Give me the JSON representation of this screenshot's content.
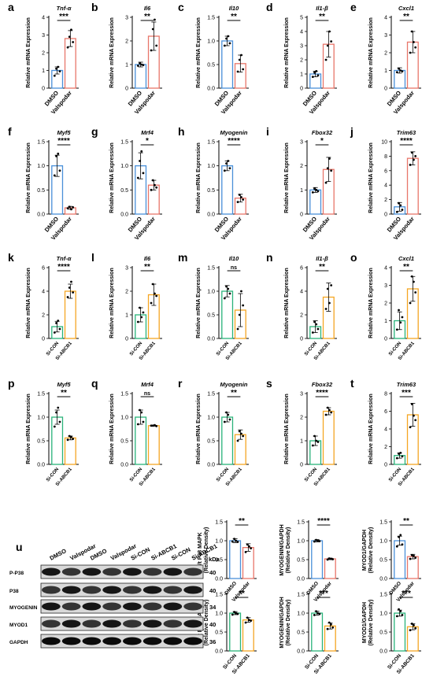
{
  "colors": {
    "blue": "#4a90d9",
    "red": "#e8766a",
    "green": "#2ab37a",
    "orange": "#f5a623",
    "axis": "#000000"
  },
  "ylabel_main": "Relative mRNA Expression",
  "chart_data": [
    {
      "type": "bar",
      "letter": "a",
      "gene": "Tnf-α",
      "categories": [
        "DMSO",
        "Valspodar"
      ],
      "values": [
        1.0,
        2.8
      ],
      "errors": [
        0.2,
        0.45
      ],
      "points": [
        [
          0.7,
          1.1,
          1.2,
          0.95
        ],
        [
          2.3,
          2.9,
          3.3,
          2.6
        ]
      ],
      "ylim": [
        0,
        4
      ],
      "yticks": [
        0,
        1,
        2,
        3,
        4
      ],
      "sig": "***",
      "series_colors": [
        "blue",
        "red"
      ],
      "ylabel": "Relative mRNA Expression"
    },
    {
      "type": "bar",
      "letter": "b",
      "gene": "Il6",
      "categories": [
        "DMSO",
        "Valspodar"
      ],
      "values": [
        1.0,
        2.2
      ],
      "errors": [
        0.1,
        0.6
      ],
      "points": [
        [
          0.95,
          1.05,
          1.0,
          0.98
        ],
        [
          1.6,
          2.5,
          2.9,
          1.8
        ]
      ],
      "ylim": [
        0,
        3
      ],
      "yticks": [
        0,
        1,
        2,
        3
      ],
      "sig": "**",
      "series_colors": [
        "blue",
        "red"
      ],
      "ylabel": "Relative mRNA Expression"
    },
    {
      "type": "bar",
      "letter": "c",
      "gene": "Il10",
      "categories": [
        "DMSO",
        "Valspodar"
      ],
      "values": [
        1.0,
        0.52
      ],
      "errors": [
        0.1,
        0.18
      ],
      "points": [
        [
          0.9,
          1.05,
          1.1,
          0.95
        ],
        [
          0.35,
          0.6,
          0.7,
          0.4
        ]
      ],
      "ylim": [
        0,
        1.5
      ],
      "yticks": [
        0.0,
        0.5,
        1.0,
        1.5
      ],
      "sig": "**",
      "series_colors": [
        "blue",
        "red"
      ],
      "ylabel": "Relative mRNA Expression"
    },
    {
      "type": "bar",
      "letter": "d",
      "gene": "Il1-β",
      "categories": [
        "DMSO",
        "Valspodar"
      ],
      "values": [
        1.0,
        3.1
      ],
      "errors": [
        0.2,
        0.9
      ],
      "points": [
        [
          0.8,
          1.1,
          1.2,
          0.9
        ],
        [
          2.0,
          3.0,
          4.0,
          3.3
        ]
      ],
      "ylim": [
        0,
        5
      ],
      "yticks": [
        0,
        1,
        2,
        3,
        4,
        5
      ],
      "sig": "**",
      "series_colors": [
        "blue",
        "red"
      ],
      "ylabel": "Relative mRNA Expression"
    },
    {
      "type": "bar",
      "letter": "e",
      "gene": "Cxcl1",
      "categories": [
        "DMSO",
        "Valspodar"
      ],
      "values": [
        1.0,
        2.6
      ],
      "errors": [
        0.15,
        0.6
      ],
      "points": [
        [
          0.9,
          1.1,
          1.0,
          0.95
        ],
        [
          2.0,
          3.2,
          2.6,
          2.3
        ]
      ],
      "ylim": [
        0,
        4
      ],
      "yticks": [
        0,
        1,
        2,
        3,
        4
      ],
      "sig": "**",
      "series_colors": [
        "blue",
        "red"
      ],
      "ylabel": "Relative mRNA Expression"
    },
    {
      "type": "bar",
      "letter": "f",
      "gene": "Myf5",
      "categories": [
        "DMSO",
        "Valspodar"
      ],
      "values": [
        1.0,
        0.13
      ],
      "errors": [
        0.22,
        0.03
      ],
      "points": [
        [
          0.8,
          1.2,
          1.25,
          0.9
        ],
        [
          0.12,
          0.15,
          0.1,
          0.14
        ]
      ],
      "ylim": [
        0,
        1.5
      ],
      "yticks": [
        0.0,
        0.5,
        1.0,
        1.5
      ],
      "sig": "****",
      "series_colors": [
        "blue",
        "red"
      ],
      "ylabel": "Relative mRNA Expression"
    },
    {
      "type": "bar",
      "letter": "g",
      "gene": "Mrf4",
      "categories": [
        "DMSO",
        "Valspodar"
      ],
      "values": [
        1.0,
        0.6
      ],
      "errors": [
        0.27,
        0.1
      ],
      "points": [
        [
          0.75,
          1.1,
          1.3,
          0.85
        ],
        [
          0.5,
          0.7,
          0.6,
          0.55
        ]
      ],
      "ylim": [
        0,
        1.5
      ],
      "yticks": [
        0.0,
        0.5,
        1.0,
        1.5
      ],
      "sig": "*",
      "series_colors": [
        "blue",
        "red"
      ],
      "ylabel": "Relative mRNA Expression"
    },
    {
      "type": "bar",
      "letter": "h",
      "gene": "Myogenin",
      "categories": [
        "DMSO",
        "Valspodar"
      ],
      "values": [
        1.0,
        0.33
      ],
      "errors": [
        0.1,
        0.08
      ],
      "points": [
        [
          0.9,
          1.05,
          1.1,
          0.95
        ],
        [
          0.25,
          0.4,
          0.35,
          0.3
        ]
      ],
      "ylim": [
        0,
        1.5
      ],
      "yticks": [
        0.0,
        0.5,
        1.0,
        1.5
      ],
      "sig": "****",
      "series_colors": [
        "blue",
        "red"
      ],
      "ylabel": "Relative mRNA Expression"
    },
    {
      "type": "bar",
      "letter": "i",
      "gene": "Fbox32",
      "categories": [
        "DMSO",
        "Valspodar"
      ],
      "values": [
        1.0,
        1.85
      ],
      "errors": [
        0.1,
        0.5
      ],
      "points": [
        [
          0.9,
          1.05,
          1.0,
          0.95
        ],
        [
          1.3,
          1.9,
          2.3,
          1.8
        ]
      ],
      "ylim": [
        0,
        3
      ],
      "yticks": [
        0,
        1,
        2,
        3
      ],
      "sig": "*",
      "series_colors": [
        "blue",
        "red"
      ],
      "ylabel": "Relative mRNA Expression"
    },
    {
      "type": "bar",
      "letter": "j",
      "gene": "Trim63",
      "categories": [
        "DMSO",
        "Valspodar"
      ],
      "values": [
        1.0,
        7.7
      ],
      "errors": [
        0.6,
        0.9
      ],
      "points": [
        [
          0.3,
          1.5,
          1.2,
          0.6
        ],
        [
          6.8,
          8.5,
          7.5,
          8.0
        ]
      ],
      "ylim": [
        0,
        10
      ],
      "yticks": [
        0,
        2,
        4,
        6,
        8,
        10
      ],
      "sig": "****",
      "series_colors": [
        "blue",
        "red"
      ],
      "ylabel": "Relative mRNA Expression"
    },
    {
      "type": "bar",
      "letter": "k",
      "gene": "Tnf-α",
      "categories": [
        "Si-CON",
        "Si-ABCB1"
      ],
      "values": [
        1.0,
        4.0
      ],
      "errors": [
        0.45,
        0.6
      ],
      "points": [
        [
          0.5,
          1.3,
          1.5,
          0.8
        ],
        [
          3.5,
          4.3,
          4.8,
          3.9
        ]
      ],
      "ylim": [
        0,
        6
      ],
      "yticks": [
        0,
        2,
        4,
        6
      ],
      "sig": "****",
      "series_colors": [
        "green",
        "orange"
      ],
      "ylabel": "Relative mRNA Expression"
    },
    {
      "type": "bar",
      "letter": "l",
      "gene": "Il6",
      "categories": [
        "Si-CON",
        "Si-ABCB1"
      ],
      "values": [
        1.0,
        1.85
      ],
      "errors": [
        0.3,
        0.45
      ],
      "points": [
        [
          0.7,
          1.3,
          0.9,
          1.1
        ],
        [
          1.5,
          2.3,
          1.9,
          1.8
        ]
      ],
      "ylim": [
        0,
        3
      ],
      "yticks": [
        0,
        1,
        2,
        3
      ],
      "sig": "**",
      "series_colors": [
        "green",
        "orange"
      ],
      "ylabel": "Relative mRNA Expression"
    },
    {
      "type": "bar",
      "letter": "m",
      "gene": "Il10",
      "categories": [
        "Si-CON",
        "Si-ABCB1"
      ],
      "values": [
        1.0,
        0.6
      ],
      "errors": [
        0.12,
        0.35
      ],
      "points": [
        [
          0.85,
          1.1,
          1.05,
          0.95
        ],
        [
          0.2,
          0.5,
          1.0,
          0.7
        ]
      ],
      "ylim": [
        0,
        1.5
      ],
      "yticks": [
        0.0,
        0.5,
        1.0,
        1.5
      ],
      "sig": "ns",
      "series_colors": [
        "green",
        "orange"
      ],
      "ylabel": "Relative mRNA Expression"
    },
    {
      "type": "bar",
      "letter": "n",
      "gene": "Il1-β",
      "categories": [
        "Si-CON",
        "Si-ABCB1"
      ],
      "values": [
        1.0,
        3.5
      ],
      "errors": [
        0.5,
        1.2
      ],
      "points": [
        [
          0.5,
          1.4,
          1.2,
          0.8
        ],
        [
          2.5,
          4.2,
          3.0,
          4.5
        ]
      ],
      "ylim": [
        0,
        6
      ],
      "yticks": [
        0,
        2,
        4,
        6
      ],
      "sig": "**",
      "series_colors": [
        "green",
        "orange"
      ],
      "ylabel": "Relative mRNA Expression"
    },
    {
      "type": "bar",
      "letter": "o",
      "gene": "Cxcl1",
      "categories": [
        "Si-CON",
        "Si-ABCB1"
      ],
      "values": [
        1.0,
        2.8
      ],
      "errors": [
        0.5,
        0.7
      ],
      "points": [
        [
          0.5,
          1.6,
          0.9,
          1.2
        ],
        [
          2.0,
          3.5,
          3.2,
          2.6
        ]
      ],
      "ylim": [
        0,
        4
      ],
      "yticks": [
        0,
        1,
        2,
        3,
        4
      ],
      "sig": "**",
      "series_colors": [
        "green",
        "orange"
      ],
      "ylabel": "Relative mRNA Expression"
    },
    {
      "type": "bar",
      "letter": "p",
      "gene": "Myf5",
      "categories": [
        "Si-CON",
        "Si-ABCB1"
      ],
      "values": [
        1.0,
        0.56
      ],
      "errors": [
        0.15,
        0.04
      ],
      "points": [
        [
          0.8,
          1.1,
          1.2,
          0.9
        ],
        [
          0.52,
          0.6,
          0.58,
          0.54
        ]
      ],
      "ylim": [
        0,
        1.5
      ],
      "yticks": [
        0.0,
        0.5,
        1.0,
        1.5
      ],
      "sig": "**",
      "series_colors": [
        "green",
        "orange"
      ],
      "ylabel": "Relative mRNA Expression"
    },
    {
      "type": "bar",
      "letter": "q",
      "gene": "Mrf4",
      "categories": [
        "Si-CON",
        "Si-ABCB1"
      ],
      "values": [
        1.0,
        0.82
      ],
      "errors": [
        0.15,
        0.01
      ],
      "points": [
        [
          0.85,
          1.15,
          1.1,
          0.9
        ],
        [
          0.82,
          0.82,
          0.83,
          0.81
        ]
      ],
      "ylim": [
        0,
        1.5
      ],
      "yticks": [
        0.0,
        0.5,
        1.0,
        1.5
      ],
      "sig": "ns",
      "series_colors": [
        "green",
        "orange"
      ],
      "ylabel": "Relative mRNA Expression"
    },
    {
      "type": "bar",
      "letter": "r",
      "gene": "Myogenin",
      "categories": [
        "Si-CON",
        "Si-ABCB1"
      ],
      "values": [
        1.0,
        0.63
      ],
      "errors": [
        0.1,
        0.1
      ],
      "points": [
        [
          0.9,
          1.1,
          1.05,
          0.95
        ],
        [
          0.5,
          0.7,
          0.65,
          0.6
        ]
      ],
      "ylim": [
        0,
        1.5
      ],
      "yticks": [
        0.0,
        0.5,
        1.0,
        1.5
      ],
      "sig": "**",
      "series_colors": [
        "green",
        "orange"
      ],
      "ylabel": "Relative mRNA Expression"
    },
    {
      "type": "bar",
      "letter": "s",
      "gene": "Fbox32",
      "categories": [
        "Si-CON",
        "Si-ABCB1"
      ],
      "values": [
        1.0,
        2.25
      ],
      "errors": [
        0.2,
        0.15
      ],
      "points": [
        [
          0.8,
          1.2,
          1.0,
          0.95
        ],
        [
          2.1,
          2.4,
          2.3,
          2.2
        ]
      ],
      "ylim": [
        0,
        3
      ],
      "yticks": [
        0,
        1,
        2,
        3
      ],
      "sig": "****",
      "series_colors": [
        "green",
        "orange"
      ],
      "ylabel": "Relative mRNA Expression"
    },
    {
      "type": "bar",
      "letter": "t",
      "gene": "Trim63",
      "categories": [
        "Si-CON",
        "Si-ABCB1"
      ],
      "values": [
        1.0,
        5.6
      ],
      "errors": [
        0.3,
        1.3
      ],
      "points": [
        [
          0.7,
          1.2,
          1.3,
          0.9
        ],
        [
          4.2,
          6.8,
          5.5,
          5.0
        ]
      ],
      "ylim": [
        0,
        8
      ],
      "yticks": [
        0,
        2,
        4,
        6,
        8
      ],
      "sig": "***",
      "series_colors": [
        "green",
        "orange"
      ],
      "ylabel": "Relative mRNA Expression"
    },
    {
      "type": "bar",
      "letter": "",
      "gene": "",
      "categories": [
        "DMSO",
        "Valspodar"
      ],
      "values": [
        1.0,
        0.82
      ],
      "errors": [
        0.05,
        0.1
      ],
      "points": [
        [
          0.98,
          1.05,
          1.0,
          0.97
        ],
        [
          0.7,
          0.9,
          0.85,
          0.8
        ]
      ],
      "ylim": [
        0,
        1.5
      ],
      "yticks": [
        0.0,
        0.5,
        1.0,
        1.5
      ],
      "sig": "**",
      "series_colors": [
        "blue",
        "red"
      ],
      "ylabel": "p/t P38 MAPK\n(Relative Density)"
    },
    {
      "type": "bar",
      "letter": "",
      "gene": "",
      "categories": [
        "DMSO",
        "Valspodar"
      ],
      "values": [
        1.0,
        0.52
      ],
      "errors": [
        0.03,
        0.02
      ],
      "points": [
        [
          0.98,
          1.02,
          1.0,
          0.99
        ],
        [
          0.5,
          0.53,
          0.52,
          0.51
        ]
      ],
      "ylim": [
        0,
        1.5
      ],
      "yticks": [
        0.0,
        0.5,
        1.0,
        1.5
      ],
      "sig": "****",
      "series_colors": [
        "blue",
        "red"
      ],
      "ylabel": "MYOGENIN/GAPDH\n(Relative Density)"
    },
    {
      "type": "bar",
      "letter": "",
      "gene": "",
      "categories": [
        "DMSO",
        "Valspodar"
      ],
      "values": [
        1.0,
        0.58
      ],
      "errors": [
        0.12,
        0.06
      ],
      "points": [
        [
          0.85,
          1.1,
          1.15,
          0.9
        ],
        [
          0.52,
          0.62,
          0.6,
          0.55
        ]
      ],
      "ylim": [
        0,
        1.5
      ],
      "yticks": [
        0.0,
        0.5,
        1.0,
        1.5
      ],
      "sig": "**",
      "series_colors": [
        "blue",
        "red"
      ],
      "ylabel": "MYOD1/GAPDH\n(Relative Density)"
    },
    {
      "type": "bar",
      "letter": "",
      "gene": "",
      "categories": [
        "Si-CON",
        "Si-ABCB1"
      ],
      "values": [
        1.0,
        0.82
      ],
      "errors": [
        0.04,
        0.06
      ],
      "points": [
        [
          0.96,
          1.03,
          1.0,
          0.98
        ],
        [
          0.75,
          0.88,
          0.82,
          0.8
        ]
      ],
      "ylim": [
        0,
        1.5
      ],
      "yticks": [
        0.0,
        0.5,
        1.0,
        1.5
      ],
      "sig": "**",
      "series_colors": [
        "green",
        "orange"
      ],
      "ylabel": "p/t P38 MAPK\n(Relative Density)"
    },
    {
      "type": "bar",
      "letter": "",
      "gene": "",
      "categories": [
        "Si-CON",
        "Si-ABCB1"
      ],
      "values": [
        1.0,
        0.66
      ],
      "errors": [
        0.05,
        0.08
      ],
      "points": [
        [
          0.95,
          1.05,
          1.0,
          0.98
        ],
        [
          0.58,
          0.75,
          0.7,
          0.62
        ]
      ],
      "ylim": [
        0,
        1.5
      ],
      "yticks": [
        0.0,
        0.5,
        1.0,
        1.5
      ],
      "sig": "***",
      "series_colors": [
        "green",
        "orange"
      ],
      "ylabel": "MYOGENIN/GAPDH\n(Relative Density)"
    },
    {
      "type": "bar",
      "letter": "",
      "gene": "",
      "categories": [
        "Si-CON",
        "Si-ABCB1"
      ],
      "values": [
        1.0,
        0.64
      ],
      "errors": [
        0.08,
        0.08
      ],
      "points": [
        [
          0.92,
          1.1,
          1.05,
          0.95
        ],
        [
          0.55,
          0.72,
          0.68,
          0.6
        ]
      ],
      "ylim": [
        0,
        1.5
      ],
      "yticks": [
        0.0,
        0.5,
        1.0,
        1.5
      ],
      "sig": "***",
      "series_colors": [
        "green",
        "orange"
      ],
      "ylabel": "MYOD1/GAPDH\n(Relative Density)"
    }
  ],
  "blot": {
    "letter": "u",
    "lanes": [
      "DMSO",
      "Valspodar",
      "DMSO",
      "Valspodar",
      "Si-CON",
      "Si-ABCB1",
      "Si-CON",
      "Si-ABCB1"
    ],
    "kda_label": "kDa",
    "rows": [
      {
        "name": "P-P38",
        "kda": "40"
      },
      {
        "name": "P38",
        "kda": "40"
      },
      {
        "name": "MYOGENIN",
        "kda": "34"
      },
      {
        "name": "MYOD1",
        "kda": "40"
      },
      {
        "name": "GAPDH",
        "kda": "36"
      }
    ]
  }
}
